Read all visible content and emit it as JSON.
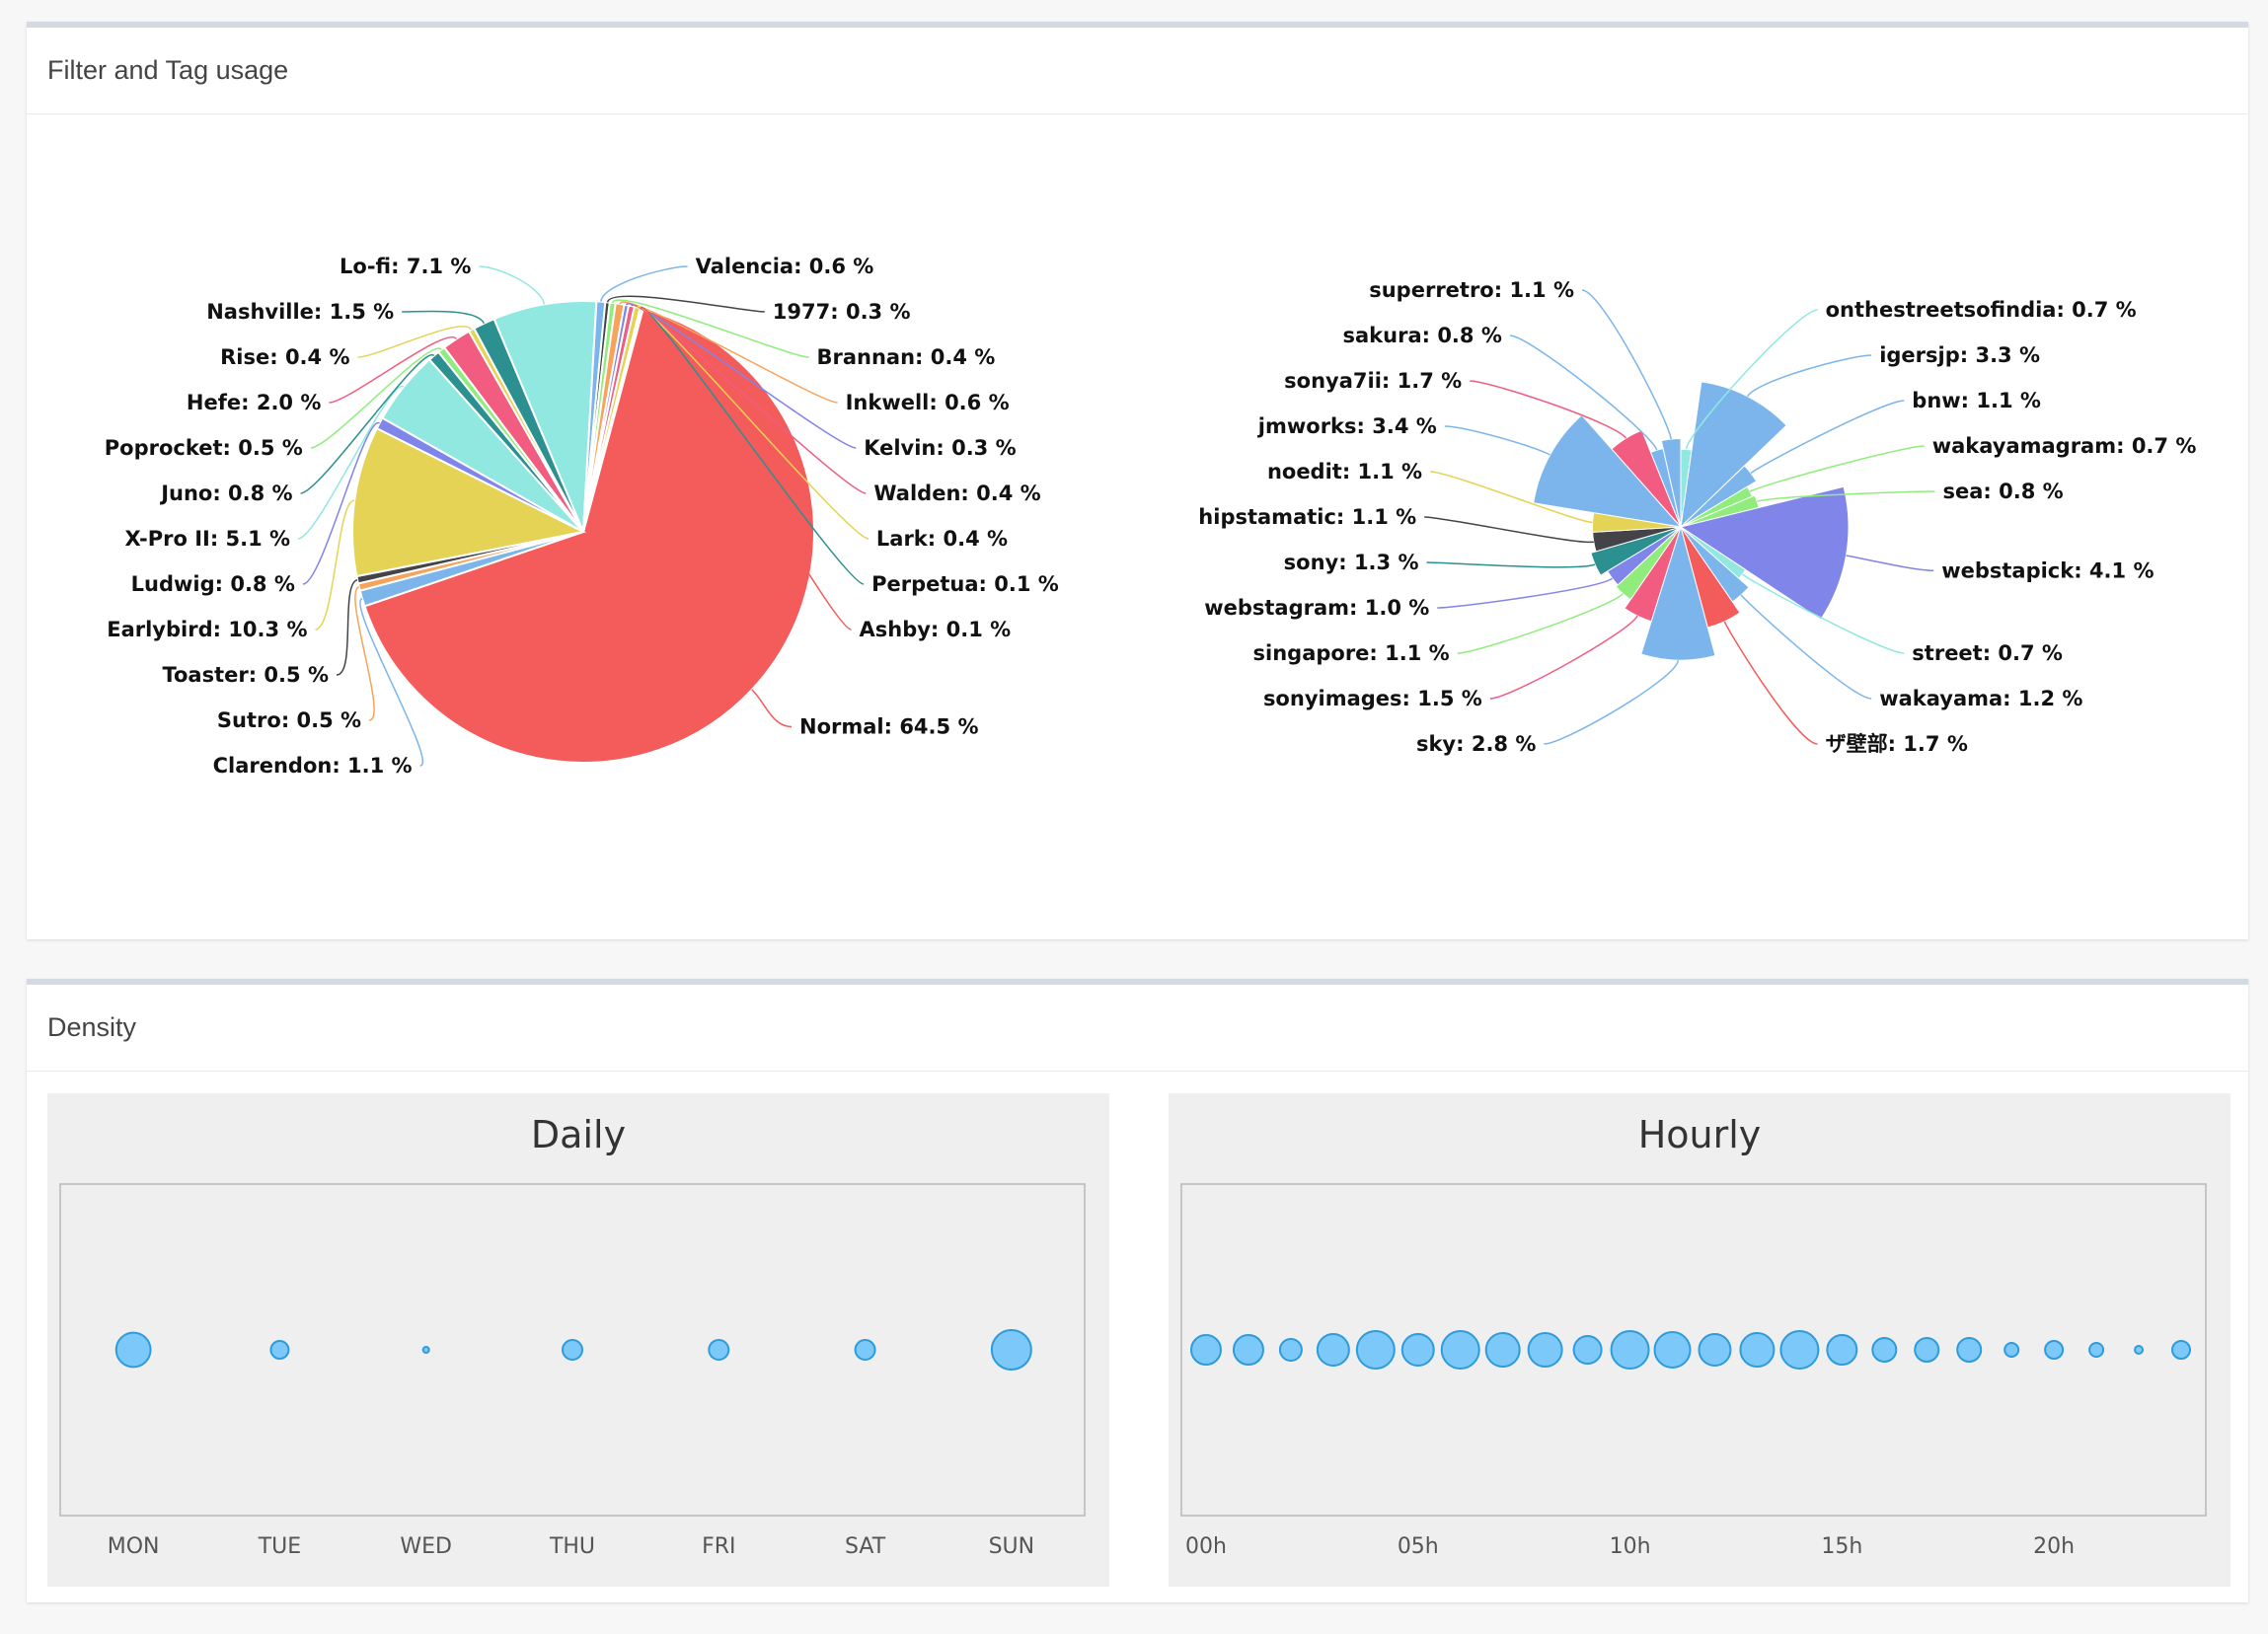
{
  "panels": {
    "filter_title": "Filter and Tag usage",
    "density_title": "Density"
  },
  "chart_data": [
    {
      "type": "pie",
      "title": "",
      "label_format": "{name}: {value} %",
      "start_angle_deg": 15,
      "slices": [
        {
          "name": "Normal",
          "value": 64.5,
          "color": "#f45b5b"
        },
        {
          "name": "Clarendon",
          "value": 1.1,
          "color": "#7cb5ec"
        },
        {
          "name": "Sutro",
          "value": 0.5,
          "color": "#f7a35c"
        },
        {
          "name": "Toaster",
          "value": 0.5,
          "color": "#434348"
        },
        {
          "name": "Earlybird",
          "value": 10.3,
          "color": "#e4d354"
        },
        {
          "name": "Ludwig",
          "value": 0.8,
          "color": "#8085e9"
        },
        {
          "name": "X-Pro II",
          "value": 5.1,
          "color": "#91e8e1"
        },
        {
          "name": "Juno",
          "value": 0.8,
          "color": "#2b908f"
        },
        {
          "name": "Poprocket",
          "value": 0.5,
          "color": "#90ed7d"
        },
        {
          "name": "Hefe",
          "value": 2.0,
          "color": "#f15c80"
        },
        {
          "name": "Rise",
          "value": 0.4,
          "color": "#e4d354"
        },
        {
          "name": "Nashville",
          "value": 1.5,
          "color": "#2b908f"
        },
        {
          "name": "Lo-fi",
          "value": 7.1,
          "color": "#91e8e1"
        },
        {
          "name": "Valencia",
          "value": 0.6,
          "color": "#7cb5ec"
        },
        {
          "name": "1977",
          "value": 0.3,
          "color": "#434348"
        },
        {
          "name": "Brannan",
          "value": 0.4,
          "color": "#90ed7d"
        },
        {
          "name": "Inkwell",
          "value": 0.6,
          "color": "#f7a35c"
        },
        {
          "name": "Kelvin",
          "value": 0.3,
          "color": "#8085e9"
        },
        {
          "name": "Walden",
          "value": 0.4,
          "color": "#f15c80"
        },
        {
          "name": "Lark",
          "value": 0.4,
          "color": "#e4d354"
        },
        {
          "name": "Perpetua",
          "value": 0.1,
          "color": "#2b908f"
        },
        {
          "name": "Ashby",
          "value": 0.1,
          "color": "#f45b5b"
        }
      ]
    },
    {
      "type": "pie",
      "variant": "variable-radius",
      "title": "",
      "label_format": "{name}: {value} %",
      "slices": [
        {
          "name": "onthestreetsofindia",
          "value": 0.7,
          "color": "#91e8e1"
        },
        {
          "name": "igersjp",
          "value": 3.3,
          "color": "#7cb5ec"
        },
        {
          "name": "bnw",
          "value": 1.1,
          "color": "#7cb5ec"
        },
        {
          "name": "wakayamagram",
          "value": 0.7,
          "color": "#90ed7d"
        },
        {
          "name": "sea",
          "value": 0.8,
          "color": "#90ed7d"
        },
        {
          "name": "webstapick",
          "value": 4.1,
          "color": "#8085e9"
        },
        {
          "name": "street",
          "value": 0.7,
          "color": "#91e8e1"
        },
        {
          "name": "wakayama",
          "value": 1.2,
          "color": "#7cb5ec"
        },
        {
          "name": "ザ壁部",
          "value": 1.7,
          "color": "#f45b5b"
        },
        {
          "name": "sky",
          "value": 2.8,
          "color": "#7cb5ec"
        },
        {
          "name": "sonyimages",
          "value": 1.5,
          "color": "#f15c80"
        },
        {
          "name": "singapore",
          "value": 1.1,
          "color": "#90ed7d"
        },
        {
          "name": "webstagram",
          "value": 1.0,
          "color": "#8085e9"
        },
        {
          "name": "sony",
          "value": 1.3,
          "color": "#2b908f"
        },
        {
          "name": "hipstamatic",
          "value": 1.1,
          "color": "#434348"
        },
        {
          "name": "noedit",
          "value": 1.1,
          "color": "#e4d354"
        },
        {
          "name": "jmworks",
          "value": 3.4,
          "color": "#7cb5ec"
        },
        {
          "name": "sonya7ii",
          "value": 1.7,
          "color": "#f15c80"
        },
        {
          "name": "sakura",
          "value": 0.8,
          "color": "#7cb5ec"
        },
        {
          "name": "superretro",
          "value": 1.1,
          "color": "#7cb5ec"
        }
      ]
    },
    {
      "type": "scatter",
      "variant": "bubble",
      "title": "Daily",
      "categories": [
        "MON",
        "TUE",
        "WED",
        "THU",
        "FRI",
        "SAT",
        "SUN"
      ],
      "values": [
        0.87,
        0.45,
        0.1,
        0.5,
        0.5,
        0.5,
        1.0
      ],
      "color": "#7cc8f8"
    },
    {
      "type": "scatter",
      "variant": "bubble",
      "title": "Hourly",
      "x": [
        0,
        1,
        2,
        3,
        4,
        5,
        6,
        7,
        8,
        9,
        10,
        11,
        12,
        13,
        14,
        15,
        16,
        17,
        18,
        19,
        20,
        21,
        22,
        23
      ],
      "tick_labels": [
        "00h",
        "05h",
        "10h",
        "15h",
        "20h"
      ],
      "tick_positions": [
        0,
        5,
        10,
        15,
        20
      ],
      "values": [
        0.75,
        0.75,
        0.55,
        0.8,
        0.95,
        0.8,
        0.95,
        0.85,
        0.85,
        0.7,
        0.95,
        0.9,
        0.8,
        0.85,
        0.95,
        0.75,
        0.6,
        0.6,
        0.6,
        0.35,
        0.45,
        0.35,
        0.2,
        0.45
      ],
      "color": "#7cc8f8"
    }
  ]
}
